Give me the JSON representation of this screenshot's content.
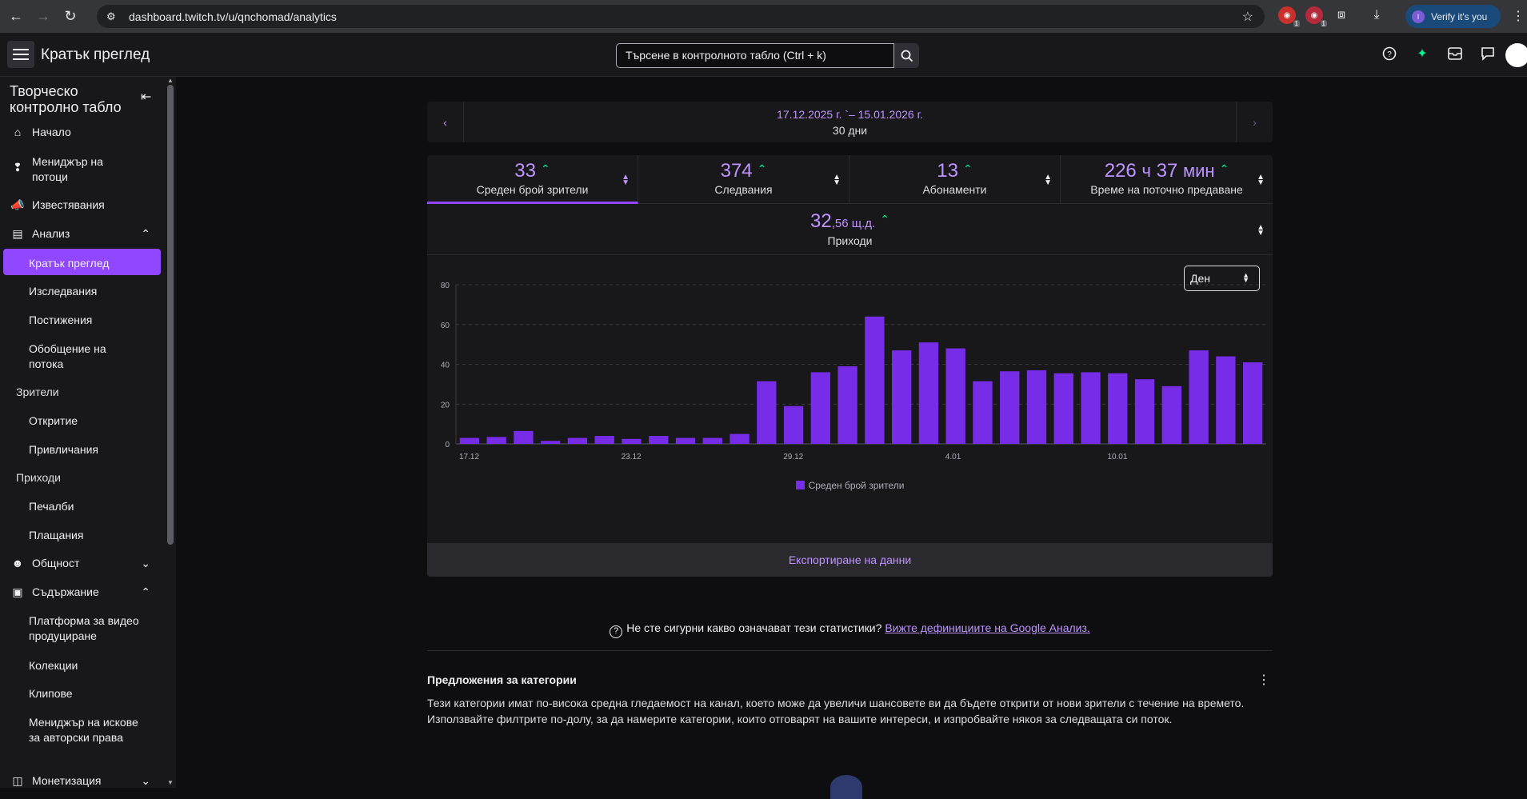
{
  "browser": {
    "url": "dashboard.twitch.tv/u/qnchomad/analytics",
    "verify_label": "Verify it's you",
    "ext_badges": [
      "1",
      "1"
    ]
  },
  "header": {
    "title": "Кратък преглед",
    "search_placeholder": "Търсене в контролното табло (Ctrl + k)"
  },
  "sidebar": {
    "title": "Творческо контролно табло",
    "items": {
      "home": "Начало",
      "stream_manager": "Мениджър на потоци",
      "notifications": "Известявания",
      "analytics": "Анализ",
      "overview": "Кратък преглед",
      "research": "Изследвания",
      "achievements": "Постижения",
      "stream_summary": "Обобщение на потока",
      "viewers_group": "Зрители",
      "discovery": "Откритие",
      "engagement": "Привличания",
      "revenue_group": "Приходи",
      "earnings": "Печалби",
      "payouts": "Плащания",
      "community": "Общност",
      "content": "Съдържание",
      "video_producer": "Платформа за видео продуциране",
      "collections": "Колекции",
      "clips": "Клипове",
      "copyright": "Мениджър на искове за авторски права",
      "monetization": "Монетизация"
    }
  },
  "date_range": {
    "range": "17.12.2025 г. `– 15.01.2026 г.",
    "days": "30 дни"
  },
  "stats": {
    "avg_viewers": {
      "value": "33",
      "label": "Среден брой зрители"
    },
    "follows": {
      "value": "374",
      "label": "Следвания"
    },
    "subs": {
      "value": "13",
      "label": "Абонаменти"
    },
    "stream_time": {
      "value": "226",
      "unit1": "ч",
      "value2": "37",
      "unit2": "мин",
      "label": "Време на поточно предаване"
    },
    "revenue": {
      "value": "32",
      "decimals": ",56 щ.д.",
      "label": "Приходи"
    }
  },
  "granularity": "Ден",
  "chart_data": {
    "type": "bar",
    "title": "",
    "xlabel": "",
    "ylabel": "",
    "ylim": [
      0,
      80
    ],
    "yticks": [
      0,
      20,
      40,
      60,
      80
    ],
    "x_tick_labels": [
      "17.12",
      "23.12",
      "29.12",
      "4.01",
      "10.01"
    ],
    "x_tick_positions": [
      0,
      6,
      12,
      18,
      24
    ],
    "categories": [
      "17.12",
      "18.12",
      "19.12",
      "20.12",
      "21.12",
      "22.12",
      "23.12",
      "24.12",
      "25.12",
      "26.12",
      "27.12",
      "28.12",
      "29.12",
      "30.12",
      "31.12",
      "1.01",
      "2.01",
      "3.01",
      "4.01",
      "5.01",
      "6.01",
      "7.01",
      "8.01",
      "9.01",
      "10.01",
      "11.01",
      "12.01",
      "13.01",
      "14.01",
      "15.01"
    ],
    "series": [
      {
        "name": "Среден брой зрители",
        "color": "#772ce8",
        "values": [
          3,
          3.5,
          6.5,
          1.5,
          3,
          4,
          2.5,
          4,
          3,
          3,
          5,
          31.5,
          19,
          36,
          39,
          64,
          47,
          51,
          48,
          31.5,
          36.5,
          37,
          35.5,
          36,
          35.5,
          32.5,
          29,
          47,
          44,
          41
        ]
      }
    ]
  },
  "export_label": "Експортиране на данни",
  "help": {
    "text": "Не сте сигурни какво означават тези статистики?",
    "link": "Вижте дефинициите на Google Анализ."
  },
  "categories_section": {
    "title": "Предложения за категории",
    "description": "Тези категории имат по-висока средна гледаемост на канал, което може да увеличи шансовете ви да бъдете открити от нови зрители с течение на времето. Използвайте филтрите по-долу, за да намерите категории, които отговарят на вашите интереси, и изпробвайте някоя за следващата си поток."
  }
}
